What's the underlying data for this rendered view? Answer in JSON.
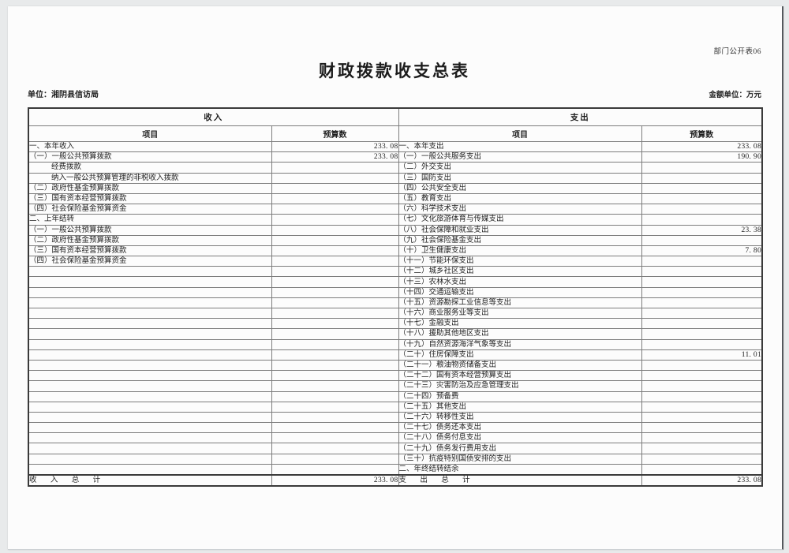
{
  "page": {
    "doc_code": "部门公开表06",
    "title": "财政拨款收支总表",
    "unit_label": "单位：湘阴县信访局",
    "amount_unit_label": "金额单位：万元"
  },
  "table": {
    "revenue_header": "收入",
    "expenditure_header": "支出",
    "item_header": "项目",
    "budget_header": "预算数",
    "revenue_rows": [
      {
        "label": "一、本年收入",
        "value": "233. 08"
      },
      {
        "label": "（一）一般公共预算拨款",
        "value": "233. 08"
      },
      {
        "label": "经费拨款",
        "value": "",
        "indent": true
      },
      {
        "label": "纳入一般公共预算管理的非税收入拨款",
        "value": "",
        "indent": true
      },
      {
        "label": "（二）政府性基金预算拨款",
        "value": ""
      },
      {
        "label": "（三）国有资本经营预算拨款",
        "value": ""
      },
      {
        "label": "（四）社会保险基金预算资金",
        "value": ""
      },
      {
        "label": "二、上年结转",
        "value": ""
      },
      {
        "label": "（一）一般公共预算拨款",
        "value": ""
      },
      {
        "label": "（二）政府性基金预算拨款",
        "value": ""
      },
      {
        "label": "（三）国有资本经营预算拨款",
        "value": ""
      },
      {
        "label": "（四）社会保险基金预算资金",
        "value": ""
      },
      {
        "label": "",
        "value": ""
      },
      {
        "label": "",
        "value": ""
      },
      {
        "label": "",
        "value": ""
      },
      {
        "label": "",
        "value": ""
      },
      {
        "label": "",
        "value": ""
      },
      {
        "label": "",
        "value": ""
      },
      {
        "label": "",
        "value": ""
      },
      {
        "label": "",
        "value": ""
      },
      {
        "label": "",
        "value": ""
      },
      {
        "label": "",
        "value": ""
      },
      {
        "label": "",
        "value": ""
      },
      {
        "label": "",
        "value": ""
      },
      {
        "label": "",
        "value": ""
      },
      {
        "label": "",
        "value": ""
      },
      {
        "label": "",
        "value": ""
      },
      {
        "label": "",
        "value": ""
      },
      {
        "label": "",
        "value": ""
      },
      {
        "label": "",
        "value": ""
      },
      {
        "label": "",
        "value": ""
      },
      {
        "label": "",
        "value": ""
      }
    ],
    "expenditure_rows": [
      {
        "label": "一、本年支出",
        "value": "233. 08"
      },
      {
        "label": "（一）一般公共服务支出",
        "value": "190. 90"
      },
      {
        "label": "（二）外交支出",
        "value": ""
      },
      {
        "label": "（三）国防支出",
        "value": ""
      },
      {
        "label": "（四）公共安全支出",
        "value": ""
      },
      {
        "label": "（五）教育支出",
        "value": ""
      },
      {
        "label": "（六）科学技术支出",
        "value": ""
      },
      {
        "label": "（七）文化旅游体育与传媒支出",
        "value": ""
      },
      {
        "label": "（八）社会保障和就业支出",
        "value": "23. 38"
      },
      {
        "label": "（九）社会保险基金支出",
        "value": ""
      },
      {
        "label": "（十）卫生健康支出",
        "value": "7. 80"
      },
      {
        "label": "（十一）节能环保支出",
        "value": ""
      },
      {
        "label": "（十二）城乡社区支出",
        "value": ""
      },
      {
        "label": "（十三）农林水支出",
        "value": ""
      },
      {
        "label": "（十四）交通运输支出",
        "value": ""
      },
      {
        "label": "（十五）资源勘探工业信息等支出",
        "value": ""
      },
      {
        "label": "（十六）商业服务业等支出",
        "value": ""
      },
      {
        "label": "（十七）金融支出",
        "value": ""
      },
      {
        "label": "（十八）援助其他地区支出",
        "value": ""
      },
      {
        "label": "（十九）自然资源海洋气象等支出",
        "value": ""
      },
      {
        "label": "（二十）住房保障支出",
        "value": "11. 01"
      },
      {
        "label": "（二十一）粮油物资储备支出",
        "value": ""
      },
      {
        "label": "（二十二）国有资本经营预算支出",
        "value": ""
      },
      {
        "label": "（二十三）灾害防治及应急管理支出",
        "value": ""
      },
      {
        "label": "（二十四）预备费",
        "value": ""
      },
      {
        "label": "（二十五）其他支出",
        "value": ""
      },
      {
        "label": "（二十六）转移性支出",
        "value": ""
      },
      {
        "label": "（二十七）债务还本支出",
        "value": ""
      },
      {
        "label": "（二十八）债务付息支出",
        "value": ""
      },
      {
        "label": "（二十九）债务发行费用支出",
        "value": ""
      },
      {
        "label": "（三十）抗疫特别国债安排的支出",
        "value": ""
      },
      {
        "label": "二、年终结转结余",
        "value": ""
      }
    ],
    "revenue_total": {
      "label": "收 入 总 计",
      "value": "233. 08"
    },
    "expenditure_total": {
      "label": "支 出 总 计",
      "value": "233. 08"
    }
  }
}
